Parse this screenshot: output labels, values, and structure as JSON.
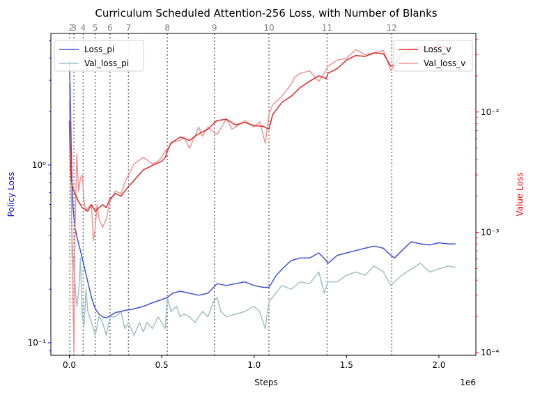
{
  "chart_data": {
    "type": "line",
    "title": "Curriculum Scheduled Attention-256 Loss, with Number of Blanks",
    "xlabel": "Steps",
    "x_offset_label": "1e6",
    "x_range": [
      -0.1,
      2.2
    ],
    "x_ticks": [
      0.0,
      0.5,
      1.0,
      1.5,
      2.0
    ],
    "x_tick_labels": [
      "0.0",
      "0.5",
      "1.0",
      "1.5",
      "2.0"
    ],
    "left_axis": {
      "label": "Policy Loss",
      "label_color": "#0000ff",
      "scale": "log",
      "range": [
        0.085,
        5.5
      ],
      "ticks": [
        0.1,
        1.0
      ],
      "tick_labels": [
        "10⁻¹",
        "10⁰"
      ]
    },
    "right_axis": {
      "label": "Value Loss",
      "label_color": "#ff0000",
      "scale": "log",
      "range": [
        9.5e-05,
        0.045
      ],
      "ticks": [
        0.0001,
        0.001,
        0.01
      ],
      "tick_labels": [
        "10⁻⁴",
        "10⁻³",
        "10⁻²"
      ]
    },
    "blank_markers": {
      "x": [
        0.003,
        0.025,
        0.075,
        0.14,
        0.22,
        0.32,
        0.53,
        0.785,
        1.08,
        1.395,
        1.745
      ],
      "labels": [
        "2",
        "3",
        "4",
        "5",
        "6",
        "7",
        "8",
        "9",
        "10",
        "11",
        "12"
      ]
    },
    "legend_left": {
      "placement": "upper left",
      "entries": [
        "Loss_pi",
        "Val_loss_pi"
      ]
    },
    "legend_right": {
      "placement": "upper right",
      "entries": [
        "Loss_v",
        "Val_loss_v"
      ]
    },
    "series": [
      {
        "name": "Loss_pi",
        "axis": "left",
        "color": "#3f51d8",
        "x": [
          0.0,
          0.005,
          0.01,
          0.015,
          0.02,
          0.03,
          0.04,
          0.06,
          0.08,
          0.1,
          0.12,
          0.14,
          0.16,
          0.18,
          0.2,
          0.22,
          0.25,
          0.3,
          0.35,
          0.4,
          0.45,
          0.5,
          0.53,
          0.56,
          0.6,
          0.65,
          0.7,
          0.75,
          0.78,
          0.8,
          0.85,
          0.9,
          0.95,
          1.0,
          1.05,
          1.08,
          1.12,
          1.16,
          1.2,
          1.25,
          1.3,
          1.35,
          1.39,
          1.4,
          1.45,
          1.5,
          1.55,
          1.6,
          1.65,
          1.7,
          1.74,
          1.76,
          1.8,
          1.85,
          1.9,
          1.95,
          2.0,
          2.05,
          2.09
        ],
        "values": [
          3.9,
          2.6,
          1.3,
          0.75,
          0.58,
          0.45,
          0.4,
          0.33,
          0.27,
          0.22,
          0.18,
          0.155,
          0.145,
          0.14,
          0.138,
          0.142,
          0.148,
          0.152,
          0.155,
          0.16,
          0.168,
          0.175,
          0.18,
          0.19,
          0.195,
          0.19,
          0.185,
          0.19,
          0.205,
          0.215,
          0.21,
          0.215,
          0.22,
          0.21,
          0.205,
          0.205,
          0.24,
          0.265,
          0.29,
          0.3,
          0.3,
          0.32,
          0.29,
          0.28,
          0.31,
          0.32,
          0.33,
          0.34,
          0.35,
          0.34,
          0.31,
          0.3,
          0.33,
          0.37,
          0.36,
          0.355,
          0.365,
          0.36,
          0.36
        ]
      },
      {
        "name": "Val_loss_pi",
        "axis": "left",
        "color": "#9fc0c4",
        "x": [
          0.0,
          0.005,
          0.01,
          0.015,
          0.02,
          0.03,
          0.04,
          0.05,
          0.06,
          0.07,
          0.08,
          0.09,
          0.1,
          0.12,
          0.13,
          0.14,
          0.16,
          0.18,
          0.2,
          0.22,
          0.25,
          0.28,
          0.3,
          0.32,
          0.35,
          0.38,
          0.4,
          0.42,
          0.45,
          0.48,
          0.5,
          0.52,
          0.53,
          0.55,
          0.58,
          0.6,
          0.62,
          0.65,
          0.68,
          0.7,
          0.72,
          0.75,
          0.78,
          0.8,
          0.82,
          0.85,
          0.9,
          0.95,
          1.0,
          1.03,
          1.06,
          1.08,
          1.1,
          1.15,
          1.2,
          1.25,
          1.3,
          1.35,
          1.38,
          1.4,
          1.45,
          1.5,
          1.55,
          1.6,
          1.65,
          1.7,
          1.74,
          1.76,
          1.8,
          1.85,
          1.9,
          1.95,
          2.0,
          2.05,
          2.09
        ],
        "values": [
          2.9,
          1.6,
          0.7,
          0.38,
          0.3,
          0.22,
          0.16,
          0.19,
          0.3,
          0.14,
          0.125,
          0.2,
          0.15,
          0.13,
          0.12,
          0.11,
          0.14,
          0.13,
          0.11,
          0.14,
          0.14,
          0.15,
          0.12,
          0.13,
          0.11,
          0.13,
          0.115,
          0.13,
          0.12,
          0.14,
          0.13,
          0.12,
          0.18,
          0.15,
          0.16,
          0.14,
          0.145,
          0.14,
          0.13,
          0.14,
          0.15,
          0.14,
          0.17,
          0.18,
          0.15,
          0.14,
          0.145,
          0.15,
          0.16,
          0.15,
          0.12,
          0.17,
          0.18,
          0.21,
          0.2,
          0.22,
          0.215,
          0.25,
          0.19,
          0.22,
          0.22,
          0.24,
          0.25,
          0.24,
          0.27,
          0.25,
          0.21,
          0.22,
          0.24,
          0.26,
          0.28,
          0.25,
          0.26,
          0.27,
          0.265
        ]
      },
      {
        "name": "Loss_v",
        "axis": "right",
        "color": "#e02626",
        "x": [
          0.0,
          0.005,
          0.01,
          0.02,
          0.03,
          0.05,
          0.07,
          0.1,
          0.12,
          0.14,
          0.16,
          0.18,
          0.2,
          0.22,
          0.25,
          0.28,
          0.3,
          0.32,
          0.35,
          0.4,
          0.45,
          0.5,
          0.52,
          0.53,
          0.55,
          0.6,
          0.65,
          0.7,
          0.75,
          0.78,
          0.8,
          0.85,
          0.9,
          0.95,
          1.0,
          1.05,
          1.08,
          1.1,
          1.15,
          1.2,
          1.25,
          1.3,
          1.35,
          1.39,
          1.4,
          1.45,
          1.5,
          1.55,
          1.6,
          1.65,
          1.7,
          1.74,
          1.76,
          1.8,
          1.85,
          1.9,
          1.95,
          2.0,
          2.05,
          2.09
        ],
        "values": [
          0.0085,
          0.004,
          0.0027,
          0.0023,
          0.0021,
          0.0018,
          0.0016,
          0.0015,
          0.0017,
          0.0015,
          0.0016,
          0.0017,
          0.0016,
          0.0019,
          0.0021,
          0.002,
          0.0022,
          0.0024,
          0.0027,
          0.0033,
          0.0036,
          0.0039,
          0.0042,
          0.0048,
          0.0055,
          0.0062,
          0.0058,
          0.0066,
          0.0072,
          0.008,
          0.0085,
          0.0087,
          0.0078,
          0.0082,
          0.0077,
          0.0076,
          0.0072,
          0.0095,
          0.012,
          0.0135,
          0.016,
          0.018,
          0.02,
          0.019,
          0.021,
          0.023,
          0.027,
          0.0295,
          0.029,
          0.031,
          0.0305,
          0.024,
          0.025,
          0.03,
          0.033,
          0.035,
          0.034,
          0.036,
          0.034,
          0.0345
        ]
      },
      {
        "name": "Val_loss_v",
        "axis": "right",
        "color": "#ef9494",
        "x": [
          0.0,
          0.005,
          0.01,
          0.015,
          0.02,
          0.025,
          0.03,
          0.04,
          0.05,
          0.06,
          0.07,
          0.08,
          0.09,
          0.1,
          0.12,
          0.13,
          0.14,
          0.15,
          0.16,
          0.18,
          0.2,
          0.22,
          0.25,
          0.28,
          0.3,
          0.32,
          0.35,
          0.4,
          0.45,
          0.48,
          0.5,
          0.52,
          0.53,
          0.55,
          0.6,
          0.62,
          0.65,
          0.7,
          0.72,
          0.75,
          0.78,
          0.8,
          0.85,
          0.88,
          0.9,
          0.95,
          1.0,
          1.03,
          1.06,
          1.08,
          1.1,
          1.15,
          1.2,
          1.22,
          1.25,
          1.3,
          1.35,
          1.38,
          1.4,
          1.45,
          1.5,
          1.55,
          1.6,
          1.65,
          1.7,
          1.74,
          1.76,
          1.8,
          1.85,
          1.9,
          1.95,
          2.0,
          2.05,
          2.09
        ],
        "values": [
          0.0125,
          0.0045,
          0.0025,
          0.0006,
          0.00025,
          0.0001,
          0.0009,
          0.0045,
          0.0022,
          0.0028,
          0.003,
          0.0018,
          0.0015,
          0.0016,
          0.0017,
          0.00085,
          0.0011,
          0.0017,
          0.0013,
          0.0011,
          0.0013,
          0.0018,
          0.0022,
          0.0021,
          0.0026,
          0.003,
          0.0037,
          0.0042,
          0.0037,
          0.0039,
          0.0042,
          0.0048,
          0.0046,
          0.0056,
          0.0058,
          0.0062,
          0.005,
          0.0075,
          0.0063,
          0.0075,
          0.0068,
          0.0065,
          0.0088,
          0.0072,
          0.0075,
          0.0085,
          0.0075,
          0.0083,
          0.0055,
          0.0095,
          0.0115,
          0.0135,
          0.017,
          0.0195,
          0.021,
          0.022,
          0.018,
          0.021,
          0.024,
          0.027,
          0.028,
          0.033,
          0.03,
          0.031,
          0.0325,
          0.022,
          0.025,
          0.032,
          0.031,
          0.033,
          0.032,
          0.035,
          0.034,
          0.0345
        ]
      }
    ]
  }
}
